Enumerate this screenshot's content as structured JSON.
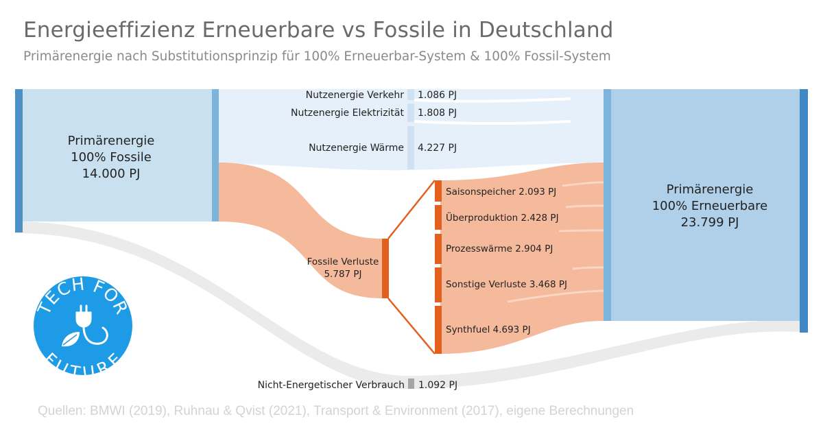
{
  "title": "Energieeffizienz Erneuerbare vs Fossile in Deutschland",
  "subtitle": "Primärenergie nach Substitutionsprinzip für 100% Erneuerbar-System & 100% Fossil-System",
  "source": "Quellen: BMWI (2019), Ruhnau & Qvist (2021), Transport & Environment (2017), eigene Berechnungen",
  "nodes": {
    "fossil": {
      "line1": "Primärenergie",
      "line2": "100% Fossile",
      "line3": "14.000 PJ",
      "value": 14000
    },
    "renewable": {
      "line1": "Primärenergie",
      "line2": "100% Erneuerbare",
      "line3": "23.799 PJ",
      "value": 23799
    },
    "verkehr": {
      "label": "Nutzenergie Verkehr",
      "value_text": "1.086 PJ",
      "value": 1086
    },
    "elektrizitaet": {
      "label": "Nutzenergie Elektrizität",
      "value_text": "1.808 PJ",
      "value": 1808
    },
    "waerme": {
      "label": "Nutzenergie Wärme",
      "value_text": "4.227 PJ",
      "value": 4227
    },
    "verluste": {
      "line1": "Fossile Verluste",
      "line2": "5.787 PJ",
      "value": 5787
    },
    "nicht_energetisch": {
      "label": "Nicht-Energetischer Verbrauch",
      "value_text": "1.092 PJ",
      "value": 1092
    },
    "saisonspeicher": {
      "label": "Saisonspeicher 2.093 PJ",
      "value": 2093
    },
    "ueberproduktion": {
      "label": "Überproduktion 2.428 PJ",
      "value": 2428
    },
    "prozesswaerme": {
      "label": "Prozesswärme 2.904 PJ",
      "value": 2904
    },
    "sonstige": {
      "label": "Sonstige Verluste 3.468 PJ",
      "value": 3468
    },
    "synthfuel": {
      "label": "Synthfuel 4.693 PJ",
      "value": 4693
    }
  },
  "logo": {
    "top_text": "TECH FOR",
    "bottom_text": "FUTURE"
  },
  "colors": {
    "fossil_node": "#c9e0f1",
    "fossil_bar": "#4a90c4",
    "renewable_node": "#afd0e8",
    "renewable_bar": "#3f88c5",
    "nutzenergie_flow": "#e6f0fa",
    "nutzenergie_bar": "#cfe1f3",
    "loss_flow": "#f5b99b",
    "loss_bar": "#e35f1d",
    "gray_flow": "#ebebeb",
    "gray_bar": "#a5a5a5",
    "logo": "#1e9be6"
  }
}
